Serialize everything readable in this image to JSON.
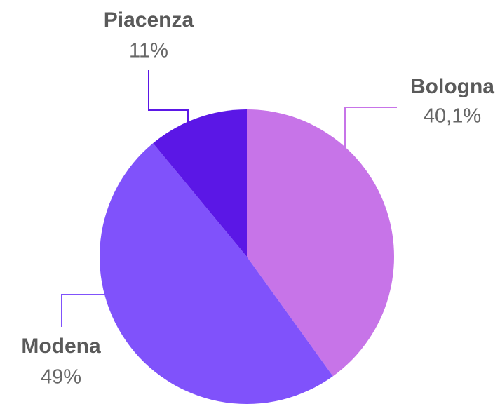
{
  "chart_data": {
    "type": "pie",
    "categories": [
      "Bologna",
      "Modena",
      "Piacenza"
    ],
    "values": [
      40.1,
      49,
      11
    ],
    "value_labels": [
      "40,1%",
      "49%",
      "11%"
    ],
    "colors": [
      "#c774e8",
      "#8052fb",
      "#5b17e6"
    ]
  }
}
